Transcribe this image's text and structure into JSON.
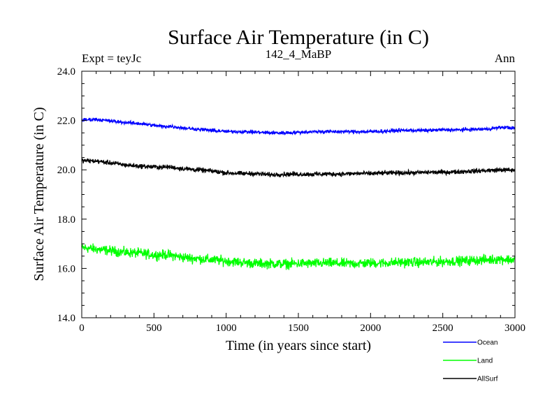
{
  "chart_data": {
    "type": "line",
    "title": "Surface Air Temperature (in C)",
    "subtitle_left": "Expt = teyJc",
    "subtitle_center": "142_4_MaBP",
    "subtitle_right": "Ann",
    "xlabel": "Time (in years since start)",
    "ylabel": "Surface Air Temperature (in C)",
    "xlim": [
      0,
      3000
    ],
    "ylim": [
      14.0,
      24.0
    ],
    "xticks": [
      0,
      500,
      1000,
      1500,
      2000,
      2500,
      3000
    ],
    "xtick_labels": [
      "0",
      "500",
      "1000",
      "1500",
      "2000",
      "2500",
      "3000"
    ],
    "yticks": [
      14.0,
      16.0,
      18.0,
      20.0,
      22.0,
      24.0
    ],
    "ytick_labels": [
      "14.0",
      "16.0",
      "18.0",
      "20.0",
      "22.0",
      "24.0"
    ],
    "legend_position": "below-right",
    "series": [
      {
        "name": "Ocean",
        "color": "#0000ff",
        "noise": 0.06,
        "x": [
          0,
          100,
          200,
          300,
          400,
          500,
          580,
          600,
          700,
          800,
          900,
          1000,
          1100,
          1200,
          1300,
          1400,
          1500,
          1600,
          1700,
          1800,
          1900,
          2000,
          2100,
          2200,
          2300,
          2400,
          2500,
          2600,
          2700,
          2800,
          2900,
          2950,
          3000
        ],
        "values": [
          22.02,
          22.05,
          21.98,
          21.92,
          21.88,
          21.8,
          21.75,
          21.78,
          21.7,
          21.65,
          21.6,
          21.55,
          21.55,
          21.53,
          21.5,
          21.5,
          21.52,
          21.55,
          21.55,
          21.55,
          21.55,
          21.55,
          21.57,
          21.6,
          21.6,
          21.6,
          21.62,
          21.62,
          21.64,
          21.65,
          21.72,
          21.72,
          21.68
        ]
      },
      {
        "name": "Land",
        "color": "#00ff00",
        "noise": 0.17,
        "x": [
          0,
          100,
          200,
          300,
          400,
          500,
          600,
          700,
          800,
          900,
          1000,
          1100,
          1200,
          1300,
          1400,
          1500,
          1600,
          1700,
          1800,
          1900,
          2000,
          2100,
          2200,
          2300,
          2400,
          2500,
          2600,
          2700,
          2800,
          2900,
          3000
        ],
        "values": [
          16.85,
          16.78,
          16.72,
          16.65,
          16.62,
          16.55,
          16.55,
          16.45,
          16.4,
          16.35,
          16.3,
          16.25,
          16.2,
          16.2,
          16.18,
          16.2,
          16.2,
          16.22,
          16.2,
          16.2,
          16.22,
          16.22,
          16.25,
          16.25,
          16.25,
          16.28,
          16.3,
          16.32,
          16.35,
          16.38,
          16.35
        ]
      },
      {
        "name": "AllSurf",
        "color": "#000000",
        "noise": 0.08,
        "x": [
          0,
          100,
          200,
          300,
          400,
          500,
          580,
          600,
          700,
          800,
          900,
          1000,
          1100,
          1200,
          1300,
          1400,
          1500,
          1600,
          1700,
          1800,
          1900,
          2000,
          2100,
          2200,
          2300,
          2400,
          2500,
          2600,
          2700,
          2800,
          2900,
          3000
        ],
        "values": [
          20.38,
          20.35,
          20.28,
          20.2,
          20.15,
          20.12,
          20.1,
          20.12,
          20.05,
          20.0,
          19.95,
          19.88,
          19.85,
          19.85,
          19.8,
          19.82,
          19.82,
          19.82,
          19.83,
          19.83,
          19.85,
          19.85,
          19.87,
          19.88,
          19.88,
          19.9,
          19.9,
          19.92,
          19.95,
          19.97,
          20.0,
          19.98
        ]
      }
    ]
  }
}
